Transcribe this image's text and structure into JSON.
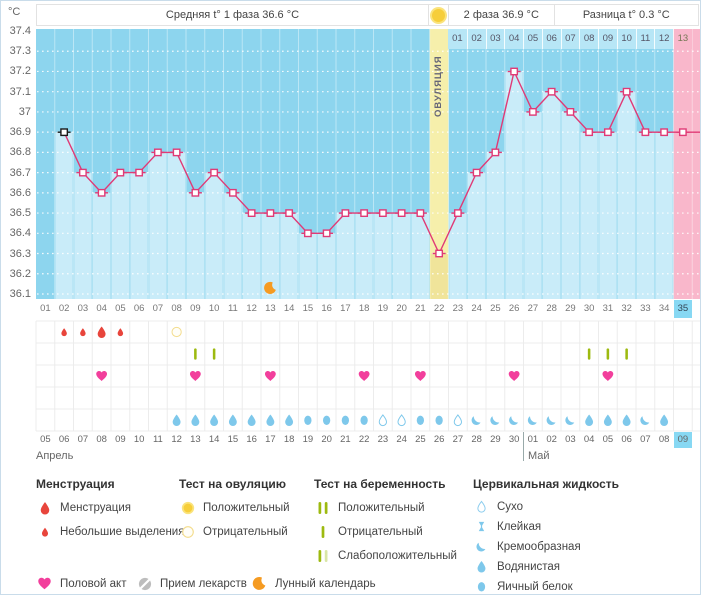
{
  "header": {
    "unit_label": "°C",
    "avg_phase1": "Средняя t° 1 фаза 36.6 °C",
    "phase2": "2 фаза 36.9 °C",
    "diff": "Разница t° 0.3 °C",
    "ovulation_label": "ОВУЛЯЦИЯ"
  },
  "chart_data": {
    "type": "line",
    "title": "Basal body temperature cycle chart",
    "ylabel": "°C",
    "ylim": [
      36.1,
      37.4
    ],
    "yticks": [
      "37.4",
      "37.3",
      "37.2",
      "37.1",
      "37",
      "36.9",
      "36.8",
      "36.7",
      "36.6",
      "36.5",
      "36.4",
      "36.3",
      "36.2",
      "36.1"
    ],
    "grid": "dotted-horizontal",
    "cycle_day_labels": [
      "01",
      "02",
      "03",
      "04",
      "05",
      "06",
      "07",
      "08",
      "09",
      "10",
      "11",
      "12",
      "13",
      "14",
      "15",
      "16",
      "17",
      "18",
      "19",
      "20",
      "21",
      "22",
      "23",
      "24",
      "25",
      "26",
      "27",
      "28",
      "29",
      "30",
      "31",
      "32",
      "33",
      "34",
      "35"
    ],
    "dpo_labels": [
      "01",
      "02",
      "03",
      "04",
      "05",
      "06",
      "07",
      "08",
      "09",
      "10",
      "11",
      "12",
      "13"
    ],
    "ovulation_day": 22,
    "highlighted_day": 35,
    "black_marker_day": 2,
    "moon_day": 13,
    "series": [
      {
        "name": "Температура",
        "temperatures_by_day": [
          null,
          36.9,
          36.7,
          36.6,
          36.7,
          36.7,
          36.8,
          36.8,
          36.6,
          36.7,
          36.6,
          36.5,
          36.5,
          36.5,
          36.4,
          36.4,
          36.5,
          36.5,
          36.5,
          36.5,
          36.5,
          36.3,
          36.5,
          36.7,
          36.8,
          37.2,
          37.0,
          37.1,
          37.0,
          36.9,
          36.9,
          37.1,
          36.9,
          36.9,
          36.9
        ]
      }
    ]
  },
  "icon_rows": {
    "menstruation": [
      {
        "day": 2,
        "type": "spotting"
      },
      {
        "day": 3,
        "type": "spotting"
      },
      {
        "day": 4,
        "type": "menses"
      },
      {
        "day": 5,
        "type": "spotting"
      }
    ],
    "ovulation_tests": [
      {
        "day": 8,
        "result": "negative"
      }
    ],
    "pregnancy_tests": [
      {
        "day": 9,
        "result": "negative"
      },
      {
        "day": 10,
        "result": "negative"
      },
      {
        "day": 30,
        "result": "negative"
      },
      {
        "day": 31,
        "result": "negative"
      },
      {
        "day": 32,
        "result": "negative"
      }
    ],
    "intercourse_days": [
      4,
      9,
      13,
      18,
      21,
      26,
      31
    ],
    "cervical_fluid": [
      {
        "day": 8,
        "type": "watery"
      },
      {
        "day": 9,
        "type": "watery"
      },
      {
        "day": 10,
        "type": "watery"
      },
      {
        "day": 11,
        "type": "watery"
      },
      {
        "day": 12,
        "type": "watery"
      },
      {
        "day": 13,
        "type": "watery"
      },
      {
        "day": 14,
        "type": "watery"
      },
      {
        "day": 15,
        "type": "eggwhite"
      },
      {
        "day": 16,
        "type": "eggwhite"
      },
      {
        "day": 17,
        "type": "eggwhite"
      },
      {
        "day": 18,
        "type": "eggwhite"
      },
      {
        "day": 19,
        "type": "dry"
      },
      {
        "day": 20,
        "type": "dry"
      },
      {
        "day": 21,
        "type": "eggwhite"
      },
      {
        "day": 22,
        "type": "eggwhite"
      },
      {
        "day": 23,
        "type": "dry"
      },
      {
        "day": 24,
        "type": "creamy"
      },
      {
        "day": 25,
        "type": "creamy"
      },
      {
        "day": 26,
        "type": "creamy"
      },
      {
        "day": 27,
        "type": "creamy"
      },
      {
        "day": 28,
        "type": "creamy"
      },
      {
        "day": 29,
        "type": "creamy"
      },
      {
        "day": 30,
        "type": "watery"
      },
      {
        "day": 31,
        "type": "watery"
      },
      {
        "day": 32,
        "type": "watery"
      },
      {
        "day": 33,
        "type": "creamy"
      },
      {
        "day": 34,
        "type": "watery"
      }
    ]
  },
  "dates": {
    "months": [
      {
        "name": "Апрель"
      },
      {
        "name": "Май"
      }
    ],
    "may_start_cycle_day": 27,
    "today_cycle_day": 35,
    "days": [
      {
        "label": "05",
        "weekend": false
      },
      {
        "label": "06",
        "weekend": false
      },
      {
        "label": "07",
        "weekend": false
      },
      {
        "label": "08",
        "weekend": false
      },
      {
        "label": "09",
        "weekend": false
      },
      {
        "label": "10",
        "weekend": true
      },
      {
        "label": "11",
        "weekend": true
      },
      {
        "label": "12",
        "weekend": false
      },
      {
        "label": "13",
        "weekend": false
      },
      {
        "label": "14",
        "weekend": false
      },
      {
        "label": "15",
        "weekend": false
      },
      {
        "label": "16",
        "weekend": false
      },
      {
        "label": "17",
        "weekend": true
      },
      {
        "label": "18",
        "weekend": true
      },
      {
        "label": "19",
        "weekend": false
      },
      {
        "label": "20",
        "weekend": false
      },
      {
        "label": "21",
        "weekend": false
      },
      {
        "label": "22",
        "weekend": false
      },
      {
        "label": "23",
        "weekend": false
      },
      {
        "label": "24",
        "weekend": true
      },
      {
        "label": "25",
        "weekend": true
      },
      {
        "label": "26",
        "weekend": false
      },
      {
        "label": "27",
        "weekend": false
      },
      {
        "label": "28",
        "weekend": false
      },
      {
        "label": "29",
        "weekend": false
      },
      {
        "label": "30",
        "weekend": false
      },
      {
        "label": "01",
        "weekend": true
      },
      {
        "label": "02",
        "weekend": true
      },
      {
        "label": "03",
        "weekend": false
      },
      {
        "label": "04",
        "weekend": false
      },
      {
        "label": "05",
        "weekend": false
      },
      {
        "label": "06",
        "weekend": false
      },
      {
        "label": "07",
        "weekend": false
      },
      {
        "label": "08",
        "weekend": true
      },
      {
        "label": "09",
        "weekend": false
      }
    ]
  },
  "legend": {
    "groups": [
      {
        "title": "Менструация",
        "items": [
          {
            "icon": "drop-large",
            "label": "Менструация"
          },
          {
            "icon": "drop-small",
            "label": "Небольшие выделения"
          }
        ]
      },
      {
        "title": "Тест на овуляцию",
        "items": [
          {
            "icon": "opk-positive",
            "label": "Положительный"
          },
          {
            "icon": "opk-negative",
            "label": "Отрицательный"
          }
        ]
      },
      {
        "title": "Тест на беременность",
        "items": [
          {
            "icon": "preg-positive",
            "label": "Положительный"
          },
          {
            "icon": "preg-negative",
            "label": "Отрицательный"
          },
          {
            "icon": "preg-weak",
            "label": "Слабоположительный"
          }
        ]
      },
      {
        "title": "Цервикальная жидкость",
        "items": [
          {
            "icon": "dry",
            "label": "Сухо"
          },
          {
            "icon": "sticky",
            "label": "Клейкая"
          },
          {
            "icon": "creamy",
            "label": "Кремообразная"
          },
          {
            "icon": "watery",
            "label": "Водянистая"
          },
          {
            "icon": "eggwhite",
            "label": "Яичный белок"
          }
        ]
      }
    ],
    "extra_items": [
      {
        "icon": "heart",
        "label": "Половой акт"
      },
      {
        "icon": "pill",
        "label": "Прием лекарств"
      },
      {
        "icon": "moon",
        "label": "Лунный календарь"
      }
    ]
  },
  "colors": {
    "plot_bg": "#8DD5EE",
    "bar_fill": "#C9ECF9",
    "ovulation_band": "#F6EFAB",
    "ovulation_band_bar": "#F0E49A",
    "period_band_pink": "#F9B7CB",
    "line": "#E03A76",
    "black_marker": "#1A1A1A",
    "menstruation_red": "#E8453C",
    "fluid_blue": "#7EC8EB",
    "heart_pink": "#F23F9C",
    "test_green": "#9DBA10",
    "moon_orange": "#F59B22",
    "weekend_red": "#E0457B",
    "highlight_cyan": "#87D8F3"
  }
}
